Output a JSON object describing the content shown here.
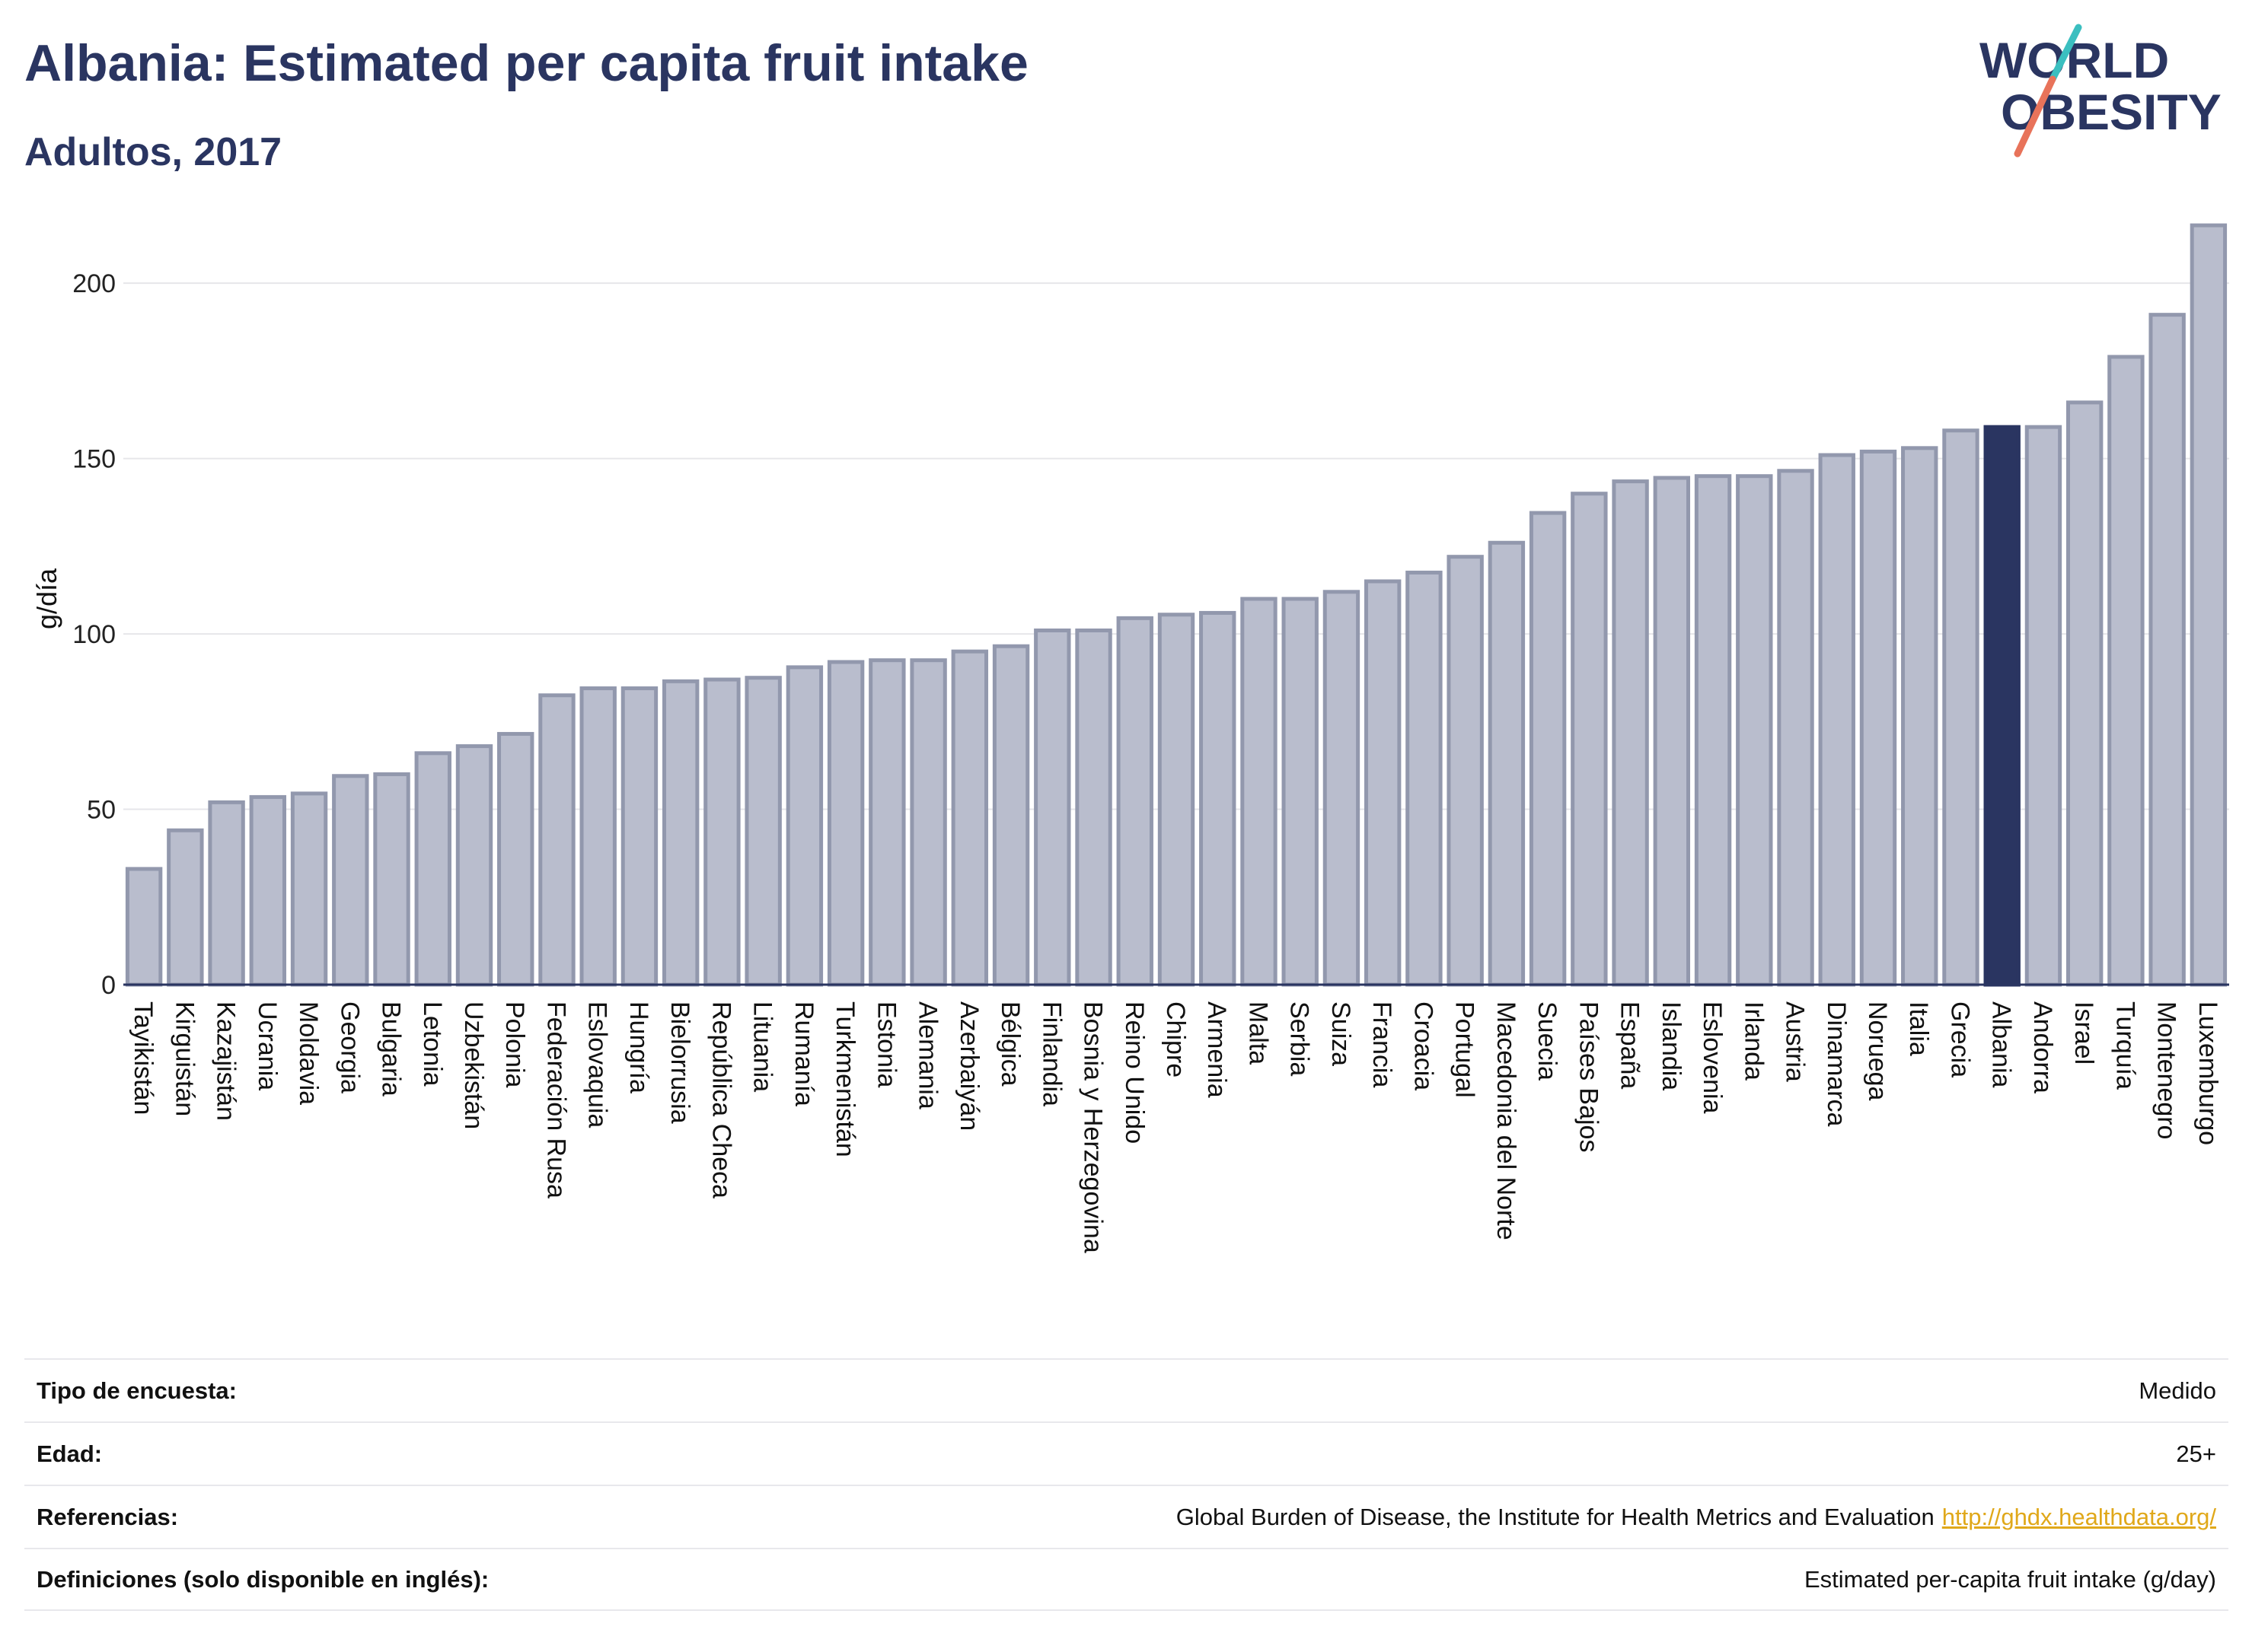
{
  "header": {
    "title": "Albania: Estimated per capita fruit intake",
    "subtitle": "Adultos, 2017"
  },
  "logo": {
    "line1": "WORLD",
    "line2": "OBESITY",
    "accent_teal": "#3bbfc0",
    "accent_coral": "#e8735a",
    "text_color": "#2a3561"
  },
  "colors": {
    "bar_default": "#b9bdcd",
    "bar_default_stroke": "#9298ad",
    "bar_highlight": "#2a3561",
    "axis": "#2a3561",
    "grid": "#e6e6ea"
  },
  "chart_data": {
    "type": "bar",
    "ylabel": "g/día",
    "ylim": [
      0,
      220
    ],
    "yticks": [
      0,
      50,
      100,
      150,
      200
    ],
    "grid": true,
    "highlight": "Albania",
    "categories": [
      "Tayikistán",
      "Kirguistán",
      "Kazajistán",
      "Ucrania",
      "Moldavia",
      "Georgia",
      "Bulgaria",
      "Letonia",
      "Uzbekistán",
      "Polonia",
      "Federación Rusa",
      "Eslovaquia",
      "Hungría",
      "Bielorrusia",
      "República Checa",
      "Lituania",
      "Rumanía",
      "Turkmenistán",
      "Estonia",
      "Alemania",
      "Azerbaiyán",
      "Bélgica",
      "Finlandia",
      "Bosnia y Herzegovina",
      "Reino Unido",
      "Chipre",
      "Armenia",
      "Malta",
      "Serbia",
      "Suiza",
      "Francia",
      "Croacia",
      "Portugal",
      "Macedonia del Norte",
      "Suecia",
      "Países Bajos",
      "España",
      "Islandia",
      "Eslovenia",
      "Irlanda",
      "Austria",
      "Dinamarca",
      "Noruega",
      "Italia",
      "Grecia",
      "Albania",
      "Andorra",
      "Israel",
      "Turquía",
      "Montenegro",
      "Luxemburgo"
    ],
    "values": [
      33,
      44,
      52,
      53.5,
      54.5,
      59.5,
      60,
      66,
      68,
      71.5,
      82.5,
      84.5,
      84.5,
      86.5,
      87,
      87.5,
      90.5,
      92,
      92.5,
      92.5,
      95,
      96.5,
      101,
      101,
      104.5,
      105.5,
      106,
      110,
      110,
      112,
      115,
      117.5,
      122,
      126,
      134.5,
      140,
      143.5,
      144.5,
      145,
      145,
      146.5,
      151,
      152,
      153,
      158,
      159,
      159,
      166,
      179,
      191,
      216.5
    ]
  },
  "meta": {
    "rows": [
      {
        "label": "Tipo de encuesta:",
        "value": "Medido"
      },
      {
        "label": "Edad:",
        "value": "25+"
      },
      {
        "label": "Referencias:",
        "value": "Global Burden of Disease, the Institute for Health Metrics and Evaluation",
        "link": "http://ghdx.healthdata.org/"
      },
      {
        "label": "Definiciones (solo disponible en inglés):",
        "value": "Estimated per-capita fruit intake (g/day)"
      }
    ]
  }
}
